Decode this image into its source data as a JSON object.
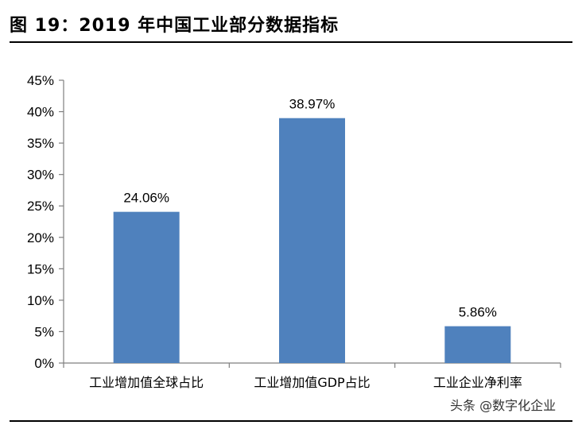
{
  "title": "图 19：2019 年中国工业部分数据指标",
  "watermark": "头条 @数字化企业",
  "chart_data": {
    "type": "bar",
    "categories": [
      "工业增加值全球占比",
      "工业增加值GDP占比",
      "工业企业净利率"
    ],
    "values": [
      24.06,
      38.97,
      5.86
    ],
    "data_labels": [
      "24.06%",
      "38.97%",
      "5.86%"
    ],
    "ylim": [
      0,
      45
    ],
    "yticks": [
      0,
      5,
      10,
      15,
      20,
      25,
      30,
      35,
      40,
      45
    ],
    "ytick_labels": [
      "0%",
      "5%",
      "10%",
      "15%",
      "20%",
      "25%",
      "30%",
      "35%",
      "40%",
      "45%"
    ],
    "grid": false,
    "bar_color": "#4F81BD"
  }
}
